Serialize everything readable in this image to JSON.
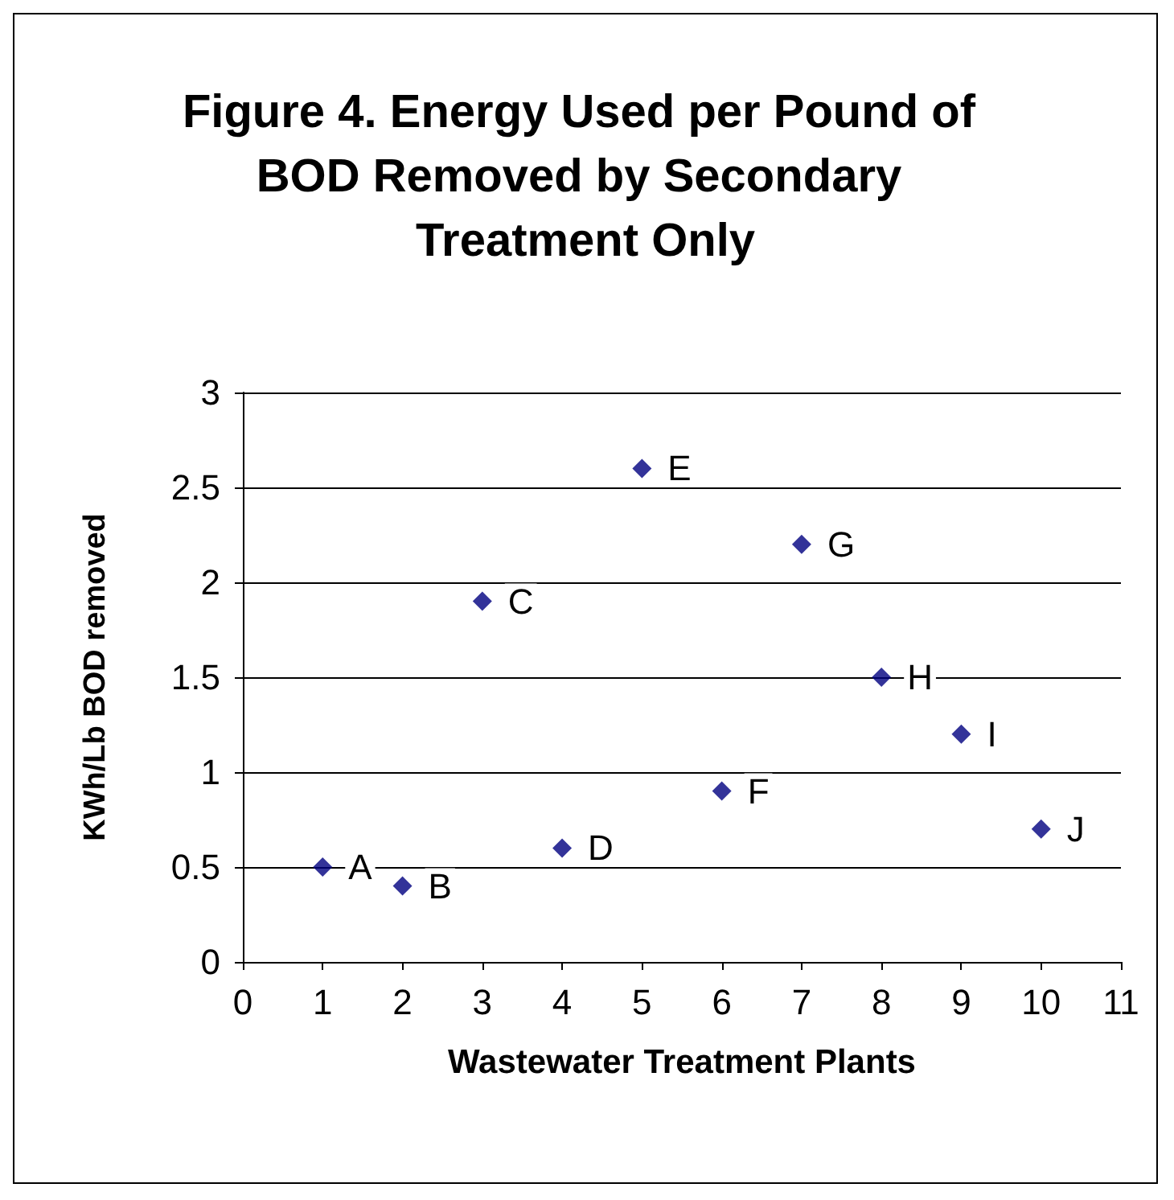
{
  "chart_data": {
    "type": "scatter",
    "title": "Figure 4. Energy Used per Pound of BOD Removed by Secondary Treatment Only",
    "xlabel": "Wastewater Treatment Plants",
    "ylabel": "KWh/Lb BOD removed",
    "x": [
      1,
      2,
      3,
      4,
      5,
      6,
      7,
      8,
      9,
      10
    ],
    "series": [
      {
        "color": "#000080",
        "values": [
          0.5,
          0.4,
          1.9,
          0.6,
          2.6,
          0.9,
          2.2,
          1.5,
          1.2,
          0.7
        ]
      }
    ],
    "annotations": [
      {
        "text": "A",
        "x": 1,
        "y": 0.5
      },
      {
        "text": "B",
        "x": 2,
        "y": 0.4
      },
      {
        "text": "C",
        "x": 3,
        "y": 1.9
      },
      {
        "text": "D",
        "x": 4,
        "y": 0.6
      },
      {
        "text": "E",
        "x": 5,
        "y": 2.6
      },
      {
        "text": "F",
        "x": 6,
        "y": 0.9
      },
      {
        "text": "G",
        "x": 7,
        "y": 2.2
      },
      {
        "text": "H",
        "x": 8,
        "y": 1.5
      },
      {
        "text": "I",
        "x": 9,
        "y": 1.2
      },
      {
        "text": "J",
        "x": 10,
        "y": 0.7
      }
    ],
    "xlim": [
      0,
      11
    ],
    "xticks": [
      0,
      1,
      2,
      3,
      4,
      5,
      6,
      7,
      8,
      9,
      10,
      11
    ],
    "ylim": [
      0,
      3
    ],
    "yticks": [
      0,
      0.5,
      1,
      1.5,
      2,
      2.5,
      3
    ],
    "grid": "y",
    "marker": "diamond"
  }
}
